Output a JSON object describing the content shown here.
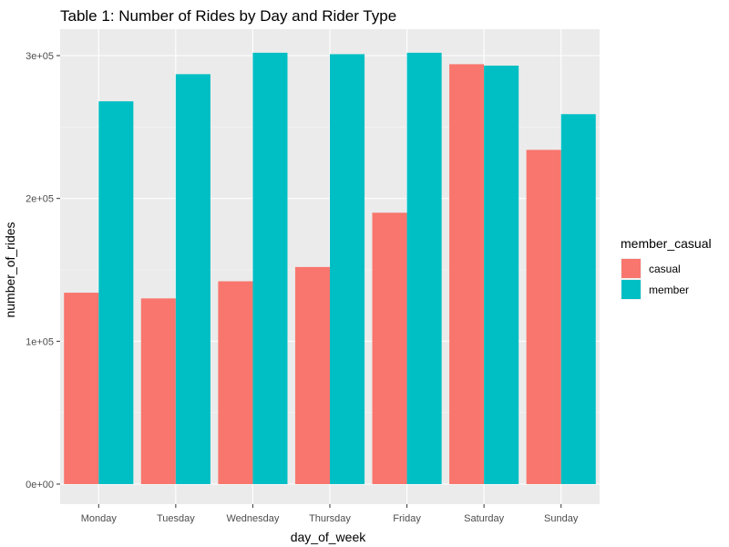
{
  "chart_data": {
    "type": "bar",
    "title": "Table 1: Number of Rides by Day and Rider Type",
    "xlabel": "day_of_week",
    "ylabel": "number_of_rides",
    "categories": [
      "Monday",
      "Tuesday",
      "Wednesday",
      "Thursday",
      "Friday",
      "Saturday",
      "Sunday"
    ],
    "ylim": [
      0,
      318000
    ],
    "y_ticks": [
      0,
      100000,
      200000,
      300000
    ],
    "y_tick_labels": [
      "0e+00",
      "1e+05",
      "2e+05",
      "3e+05"
    ],
    "grid": true,
    "legend": {
      "title": "member_casual",
      "position": "right"
    },
    "series": [
      {
        "name": "casual",
        "color": "#F8766D",
        "values": [
          134000,
          130000,
          142000,
          152000,
          190000,
          294000,
          234000
        ]
      },
      {
        "name": "member",
        "color": "#00BFC4",
        "values": [
          268000,
          287000,
          302000,
          301000,
          302000,
          293000,
          259000
        ]
      }
    ]
  }
}
